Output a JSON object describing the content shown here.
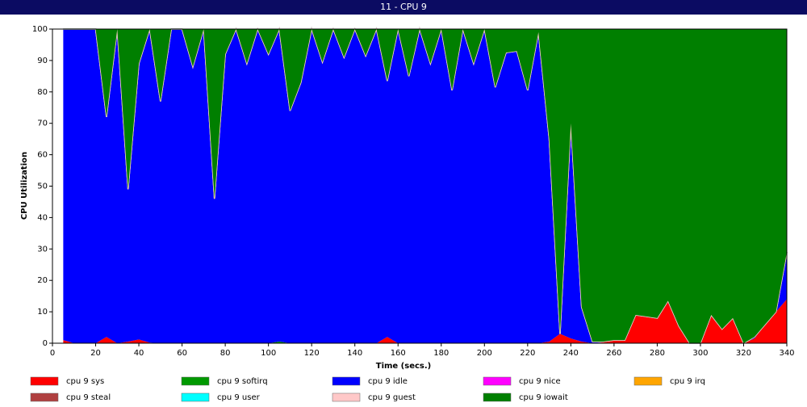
{
  "chart_data": {
    "type": "stacked_area",
    "title": "11 - CPU 9",
    "x_label": "Time (secs.)",
    "y_label": "CPU Utilization",
    "x": [
      5,
      10,
      15,
      20,
      25,
      30,
      35,
      40,
      45,
      50,
      55,
      60,
      65,
      70,
      75,
      80,
      85,
      90,
      95,
      100,
      105,
      110,
      115,
      120,
      125,
      130,
      135,
      140,
      145,
      150,
      155,
      160,
      165,
      170,
      175,
      180,
      185,
      190,
      195,
      200,
      205,
      210,
      215,
      220,
      225,
      230,
      235,
      240,
      245,
      250,
      255,
      260,
      265,
      270,
      275,
      280,
      285,
      290,
      295,
      300,
      305,
      310,
      315,
      320,
      325,
      330,
      335,
      340
    ],
    "xlim": [
      0,
      340
    ],
    "ylim": [
      0,
      100
    ],
    "xticks": [
      0,
      20,
      40,
      60,
      80,
      100,
      120,
      140,
      160,
      180,
      200,
      220,
      240,
      260,
      280,
      300,
      320,
      340
    ],
    "yticks": [
      0,
      10,
      20,
      30,
      40,
      50,
      60,
      70,
      80,
      90,
      100
    ],
    "series": [
      {
        "name": "cpu 9 sys",
        "color": "#ff0000",
        "values": [
          1,
          0,
          0,
          0,
          2,
          0,
          0.5,
          1.2,
          0.2,
          0,
          0,
          0,
          0,
          0,
          0,
          0,
          0,
          0,
          0,
          0,
          0,
          0,
          0,
          0,
          0,
          0,
          0,
          0,
          0,
          0,
          2,
          0,
          0,
          0,
          0,
          0,
          0,
          0,
          0,
          0,
          0,
          0,
          0,
          0,
          0,
          0.5,
          3,
          1.5,
          0.5,
          0,
          0.3,
          1,
          1,
          9,
          8.5,
          8,
          13.5,
          5.5,
          0,
          0,
          9,
          4.5,
          8,
          0,
          1.5,
          6,
          10,
          14
        ]
      },
      {
        "name": "cpu 9 softirq",
        "color": "#009900",
        "values": [
          0,
          0,
          0,
          0,
          0,
          0,
          0,
          0,
          0,
          0,
          0,
          0,
          0,
          0,
          0,
          0,
          0,
          0,
          0,
          0,
          0.5,
          0,
          0,
          0,
          0,
          0,
          0,
          0,
          0,
          0,
          0,
          0,
          0,
          0,
          0,
          0,
          0,
          0,
          0,
          0,
          0,
          0,
          0,
          0,
          0,
          0,
          0,
          0,
          0,
          0,
          0,
          0,
          0,
          0,
          0,
          0,
          0,
          0,
          0,
          0,
          0,
          0,
          0,
          0,
          0,
          0,
          0,
          0
        ]
      },
      {
        "name": "cpu 9 idle",
        "color": "#0000ff",
        "values": [
          99,
          100,
          100,
          100,
          70,
          100,
          48.5,
          87.8,
          99.8,
          77,
          100,
          100,
          88,
          100,
          46,
          92,
          100,
          89,
          100,
          92,
          99.5,
          74,
          83,
          100,
          89.5,
          100,
          91,
          100,
          91.5,
          100,
          81.5,
          100,
          85,
          100,
          89,
          100,
          80.5,
          100,
          89,
          100,
          81.5,
          92.5,
          93,
          80.5,
          99,
          64.5,
          0,
          68.5,
          11,
          0.5,
          0.2,
          0,
          0,
          0,
          0,
          0,
          0,
          0,
          0,
          0,
          0,
          0,
          0,
          0,
          0.5,
          0,
          0,
          15
        ]
      },
      {
        "name": "cpu 9 nice",
        "color": "#ff00ff",
        "values": [
          0,
          0,
          0,
          0,
          0,
          0,
          0,
          0,
          0,
          0,
          0,
          0,
          0,
          0,
          0,
          0,
          0,
          0,
          0,
          0,
          0,
          0,
          0,
          0,
          0,
          0,
          0,
          0,
          0,
          0,
          0,
          0,
          0,
          0,
          0,
          0,
          0,
          0,
          0,
          0,
          0,
          0,
          0,
          0,
          0,
          0,
          0,
          0,
          0,
          0,
          0,
          0,
          0,
          0,
          0,
          0,
          0,
          0,
          0,
          0,
          0,
          0,
          0,
          0,
          0,
          0,
          0,
          0
        ]
      },
      {
        "name": "cpu 9 irq",
        "color": "#ffa500",
        "values": [
          0,
          0,
          0,
          0,
          0,
          0,
          0,
          0,
          0,
          0,
          0,
          0,
          0,
          0,
          0,
          0,
          0,
          0,
          0,
          0,
          0,
          0,
          0,
          0,
          0,
          0,
          0,
          0,
          0,
          0,
          0,
          0,
          0,
          0,
          0,
          0,
          0,
          0,
          0,
          0,
          0,
          0,
          0,
          0,
          0,
          0,
          0,
          0,
          0,
          0,
          0,
          0,
          0,
          0,
          0,
          0,
          0,
          0,
          0,
          0,
          0,
          0,
          0,
          0,
          0,
          0,
          0,
          0
        ]
      },
      {
        "name": "cpu 9 steal",
        "color": "#b04040",
        "values": [
          0,
          0,
          0,
          0,
          0,
          0,
          0,
          0,
          0,
          0,
          0,
          0,
          0,
          0,
          0,
          0,
          0,
          0,
          0,
          0,
          0,
          0,
          0,
          0,
          0,
          0,
          0,
          0,
          0,
          0,
          0,
          0,
          0,
          0,
          0,
          0,
          0,
          0,
          0,
          0,
          0,
          0,
          0,
          0,
          0,
          0,
          0,
          0,
          0,
          0,
          0,
          0,
          0,
          0,
          0,
          0,
          0,
          0,
          0,
          0,
          0,
          0,
          0,
          0,
          0,
          0,
          0,
          0
        ]
      },
      {
        "name": "cpu 9 user",
        "color": "#00ffff",
        "values": [
          0,
          0,
          0,
          0,
          0,
          0,
          0,
          0,
          0,
          0,
          0,
          0,
          0,
          0,
          0,
          0,
          0,
          0,
          0,
          0,
          0,
          0,
          0,
          0,
          0,
          0,
          0,
          0,
          0,
          0,
          0,
          0,
          0,
          0,
          0,
          0,
          0,
          0,
          0,
          0,
          0,
          0,
          0,
          0,
          0,
          0,
          0,
          0,
          0,
          0,
          0,
          0,
          0,
          0,
          0,
          0,
          0,
          0,
          0,
          0,
          0,
          0,
          0,
          0,
          0,
          0,
          0,
          0
        ]
      },
      {
        "name": "cpu 9 guest",
        "color": "#ffc8c8",
        "values": [
          0,
          0,
          0,
          0,
          0,
          0,
          0,
          0,
          0,
          0,
          0,
          0,
          0,
          0,
          0,
          0,
          0,
          0,
          0,
          0,
          0,
          0,
          0,
          0,
          0,
          0,
          0,
          0,
          0,
          0,
          0,
          0,
          0,
          0,
          0,
          0,
          0,
          0,
          0,
          0,
          0,
          0,
          0,
          0,
          0,
          0,
          0,
          0,
          0,
          0,
          0,
          0,
          0,
          0,
          0,
          0,
          0,
          0,
          0,
          0,
          0,
          0,
          0,
          0,
          0,
          0,
          0,
          0
        ]
      },
      {
        "name": "cpu 9 iowait",
        "color": "#007f00",
        "values": [
          0,
          0,
          0,
          0,
          28,
          0,
          51,
          11,
          0,
          23,
          0,
          0,
          12,
          0,
          54,
          8,
          0,
          11,
          0,
          8,
          0,
          26,
          17,
          0,
          10.5,
          0,
          9,
          0,
          8.5,
          0,
          16.5,
          0,
          15,
          0,
          11,
          0,
          19.5,
          0,
          11,
          0,
          18.5,
          7.5,
          7,
          19.5,
          1,
          35,
          97,
          30,
          88.5,
          99.5,
          99.5,
          99,
          99,
          91,
          91.5,
          92,
          86.5,
          94.5,
          100,
          100,
          91,
          95.5,
          92,
          100,
          98,
          94,
          90,
          71
        ]
      }
    ]
  }
}
